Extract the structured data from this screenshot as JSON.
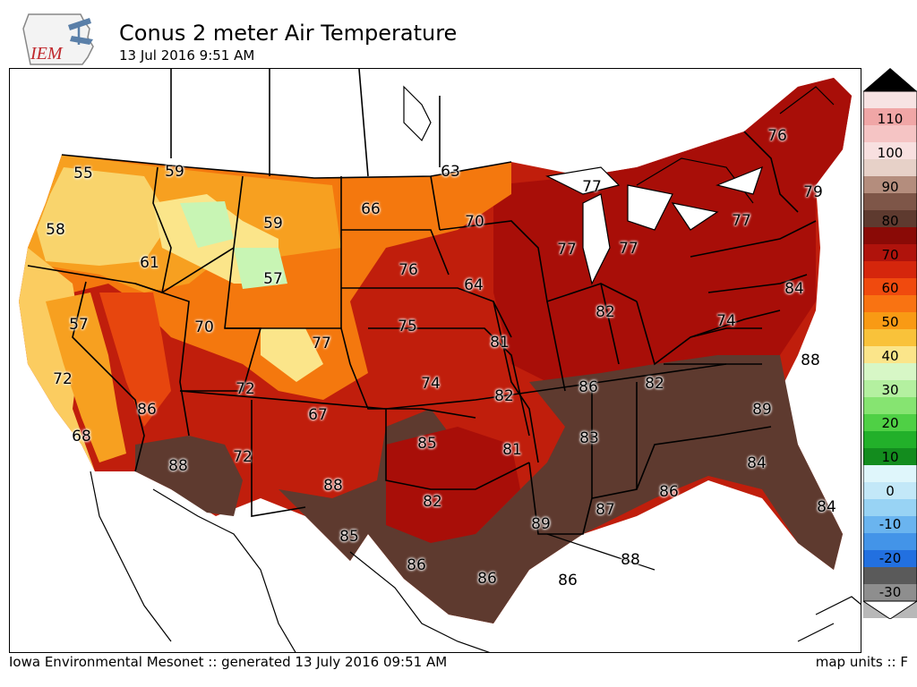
{
  "header": {
    "logo_text": "IEM",
    "title": "Conus 2 meter Air Temperature",
    "subtitle": "13 Jul 2016 9:51 AM"
  },
  "footer": {
    "left": "Iowa Environmental Mesonet :: generated 13 July 2016 09:51 AM",
    "right": "map units :: F"
  },
  "colorbar": {
    "labels": [
      "110",
      "100",
      "90",
      "80",
      "70",
      "60",
      "50",
      "40",
      "30",
      "20",
      "10",
      "0",
      "-10",
      "-20",
      "-30"
    ]
  },
  "observations": [
    {
      "label": "55"
    },
    {
      "label": "59"
    },
    {
      "label": "63"
    },
    {
      "label": "58"
    },
    {
      "label": "59"
    },
    {
      "label": "66"
    },
    {
      "label": "70"
    },
    {
      "label": "77"
    },
    {
      "label": "76"
    },
    {
      "label": "79"
    },
    {
      "label": "61"
    },
    {
      "label": "57"
    },
    {
      "label": "76"
    },
    {
      "label": "64"
    },
    {
      "label": "77"
    },
    {
      "label": "77"
    },
    {
      "label": "77"
    },
    {
      "label": "57"
    },
    {
      "label": "70"
    },
    {
      "label": "75"
    },
    {
      "label": "82"
    },
    {
      "label": "74"
    },
    {
      "label": "84"
    },
    {
      "label": "77"
    },
    {
      "label": "81"
    },
    {
      "label": "72"
    },
    {
      "label": "72"
    },
    {
      "label": "74"
    },
    {
      "label": "82"
    },
    {
      "label": "86"
    },
    {
      "label": "82"
    },
    {
      "label": "88"
    },
    {
      "label": "86"
    },
    {
      "label": "67"
    },
    {
      "label": "89"
    },
    {
      "label": "68"
    },
    {
      "label": "85"
    },
    {
      "label": "83"
    },
    {
      "label": "88"
    },
    {
      "label": "72"
    },
    {
      "label": "81"
    },
    {
      "label": "84"
    },
    {
      "label": "88"
    },
    {
      "label": "86"
    },
    {
      "label": "82"
    },
    {
      "label": "87"
    },
    {
      "label": "89"
    },
    {
      "label": "84"
    },
    {
      "label": "85"
    },
    {
      "label": "86"
    },
    {
      "label": "88"
    },
    {
      "label": "86"
    },
    {
      "label": "86"
    }
  ]
}
